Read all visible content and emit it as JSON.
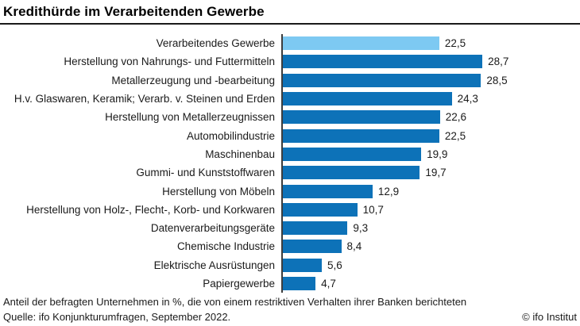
{
  "title": "Kredithürde im Verarbeitenden Gewerbe",
  "chart_data": {
    "type": "bar",
    "orientation": "horizontal",
    "title": "Kredithürde im Verarbeitenden Gewerbe",
    "categories": [
      "Verarbeitendes Gewerbe",
      "Herstellung von Nahrungs- und Futtermitteln",
      "Metallerzeugung und -bearbeitung",
      "H.v. Glaswaren, Keramik; Verarb. v. Steinen und Erden",
      "Herstellung von Metallerzeugnissen",
      "Automobilindustrie",
      "Maschinenbau",
      "Gummi- und Kunststoffwaren",
      "Herstellung von Möbeln",
      "Herstellung von Holz-, Flecht-, Korb- und Korkwaren",
      "Datenverarbeitungsgeräte",
      "Chemische Industrie",
      "Elektrische Ausrüstungen",
      "Papiergewerbe"
    ],
    "values": [
      22.5,
      28.7,
      28.5,
      24.3,
      22.6,
      22.5,
      19.9,
      19.7,
      12.9,
      10.7,
      9.3,
      8.4,
      5.6,
      4.7
    ],
    "value_labels": [
      "22,5",
      "28,7",
      "28,5",
      "24,3",
      "22,6",
      "22,5",
      "19,9",
      "19,7",
      "12,9",
      "10,7",
      "9,3",
      "8,4",
      "5,6",
      "4,7"
    ],
    "highlight_index": 0,
    "bar_color": "#0d72b8",
    "highlight_color": "#7dc9f2",
    "axis_line_color": "#3d3d3d",
    "xlim": [
      0,
      30
    ],
    "grid": false,
    "legend": false,
    "data_labels": true
  },
  "footer": {
    "note": "Anteil der befragten Unternehmen in %, die von einem restriktiven Verhalten ihrer Banken berichteten",
    "source": "Quelle: ifo Konjunkturumfragen, September 2022.",
    "copyright": "© ifo Institut"
  }
}
